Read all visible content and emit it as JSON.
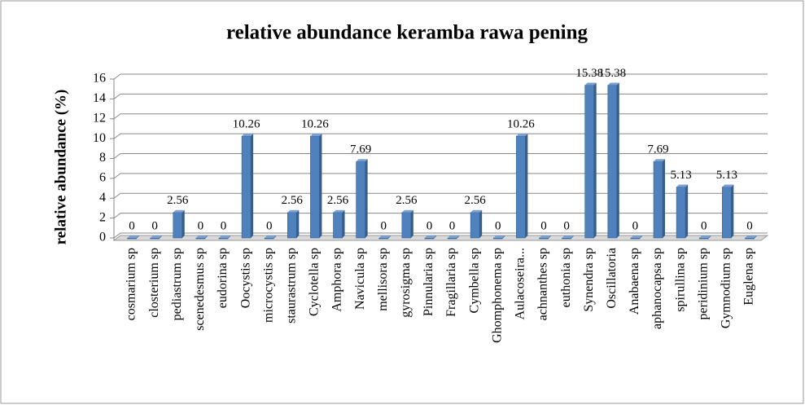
{
  "chart_data": {
    "type": "bar",
    "title": "relative abundance keramba rawa pening",
    "y_label": "relative abundance (%)",
    "categories": [
      "cosmarium sp",
      "closterium sp",
      "pediastrum sp",
      "scenedesmus sp",
      "eudorina sp",
      "Oocystis sp",
      "microcystis sp",
      "staurastrum sp",
      "Cyclotella sp",
      "Amphora sp",
      "Navicula sp",
      "mellisora sp",
      "gyrosigma sp",
      "Pinnularia sp",
      "Fragillaria sp",
      "Cymbella sp",
      "Ghomphonema sp",
      "Aulacoseira...",
      "achnanthes sp",
      "euthonia sp",
      "Synendra sp",
      "Oscillatoria",
      "Anabaena sp",
      "aphanocapsa sp",
      "spirullina sp",
      "peridinium sp",
      "Gymnodium sp",
      "Euglena sp"
    ],
    "values": [
      0,
      0,
      2.56,
      0,
      0,
      10.26,
      0,
      2.56,
      10.26,
      2.56,
      7.69,
      0,
      2.56,
      0,
      0,
      2.56,
      0,
      10.26,
      0,
      0,
      15.38,
      15.38,
      0,
      7.69,
      5.13,
      0,
      5.13,
      0
    ],
    "color": "#4f81bd",
    "ylim": [
      0,
      16
    ],
    "yticks": [
      0,
      2,
      4,
      6,
      8,
      10,
      12,
      14,
      16
    ],
    "grid": true
  }
}
